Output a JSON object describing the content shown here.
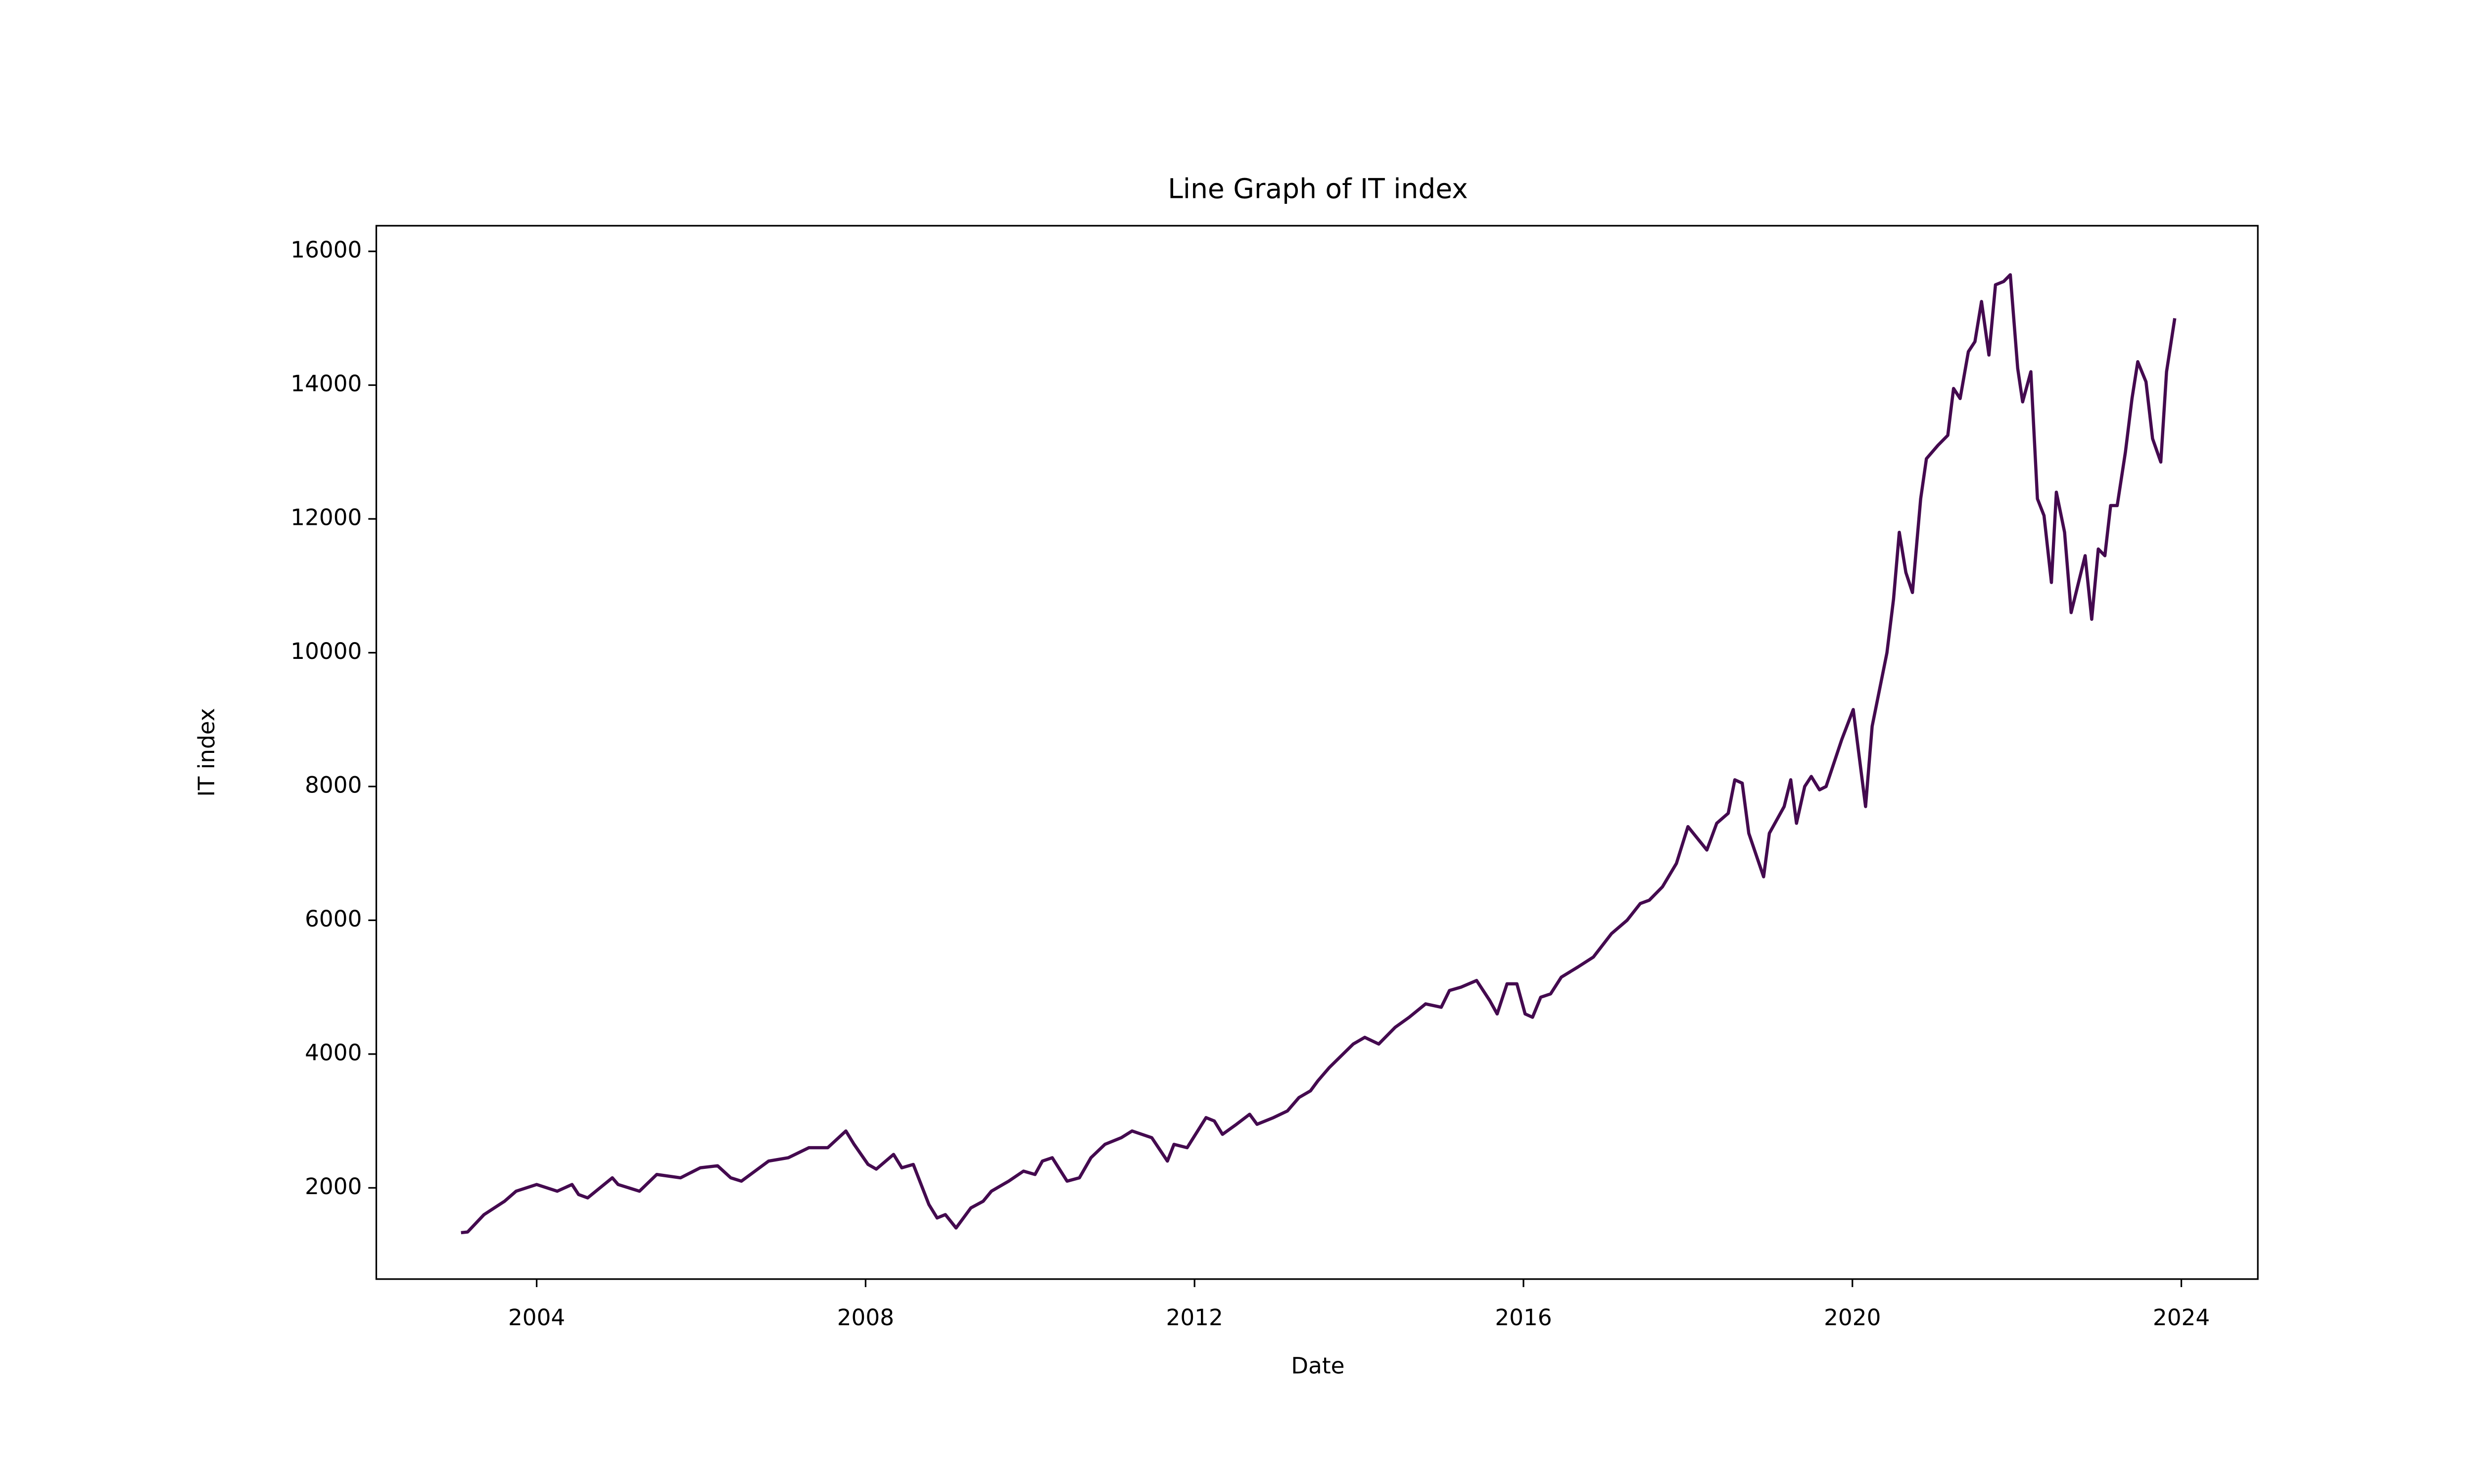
{
  "chart_data": {
    "type": "line",
    "title": "Line Graph of IT index",
    "x_label": "Date",
    "y_label": "IT index",
    "x": [
      2003.08,
      2003.16,
      2003.36,
      2003.61,
      2003.75,
      2004.0,
      2004.25,
      2004.43,
      2004.51,
      2004.62,
      2004.92,
      2004.99,
      2005.25,
      2005.46,
      2005.75,
      2005.99,
      2006.2,
      2006.36,
      2006.49,
      2006.82,
      2007.06,
      2007.31,
      2007.54,
      2007.76,
      2007.86,
      2008.03,
      2008.13,
      2008.34,
      2008.44,
      2008.58,
      2008.77,
      2008.87,
      2008.97,
      2009.1,
      2009.28,
      2009.43,
      2009.53,
      2009.74,
      2009.92,
      2010.06,
      2010.15,
      2010.27,
      2010.45,
      2010.6,
      2010.74,
      2010.91,
      2011.11,
      2011.24,
      2011.48,
      2011.67,
      2011.75,
      2011.91,
      2012.14,
      2012.24,
      2012.34,
      2012.51,
      2012.67,
      2012.76,
      2012.96,
      2013.13,
      2013.27,
      2013.41,
      2013.5,
      2013.64,
      2013.93,
      2014.07,
      2014.24,
      2014.44,
      2014.61,
      2014.81,
      2015.0,
      2015.1,
      2015.24,
      2015.43,
      2015.59,
      2015.68,
      2015.8,
      2015.92,
      2016.02,
      2016.11,
      2016.21,
      2016.33,
      2016.46,
      2016.66,
      2016.85,
      2017.07,
      2017.26,
      2017.42,
      2017.53,
      2017.69,
      2017.86,
      2018.0,
      2018.23,
      2018.35,
      2018.49,
      2018.57,
      2018.66,
      2018.74,
      2018.92,
      2018.99,
      2019.17,
      2019.25,
      2019.32,
      2019.42,
      2019.5,
      2019.6,
      2019.68,
      2019.87,
      2020.01,
      2020.16,
      2020.24,
      2020.42,
      2020.5,
      2020.57,
      2020.65,
      2020.73,
      2020.83,
      2020.9,
      2021.04,
      2021.16,
      2021.23,
      2021.31,
      2021.41,
      2021.49,
      2021.57,
      2021.66,
      2021.74,
      2021.84,
      2021.92,
      2022.01,
      2022.07,
      2022.17,
      2022.25,
      2022.33,
      2022.42,
      2022.48,
      2022.58,
      2022.66,
      2022.83,
      2022.91,
      2022.99,
      2023.07,
      2023.14,
      2023.22,
      2023.32,
      2023.4,
      2023.47,
      2023.57,
      2023.65,
      2023.75,
      2023.82,
      2023.92
    ],
    "series": [
      {
        "name": "IT index",
        "color": "#440a4f",
        "values": [
          1330,
          1340,
          1600,
          1800,
          1950,
          2050,
          1950,
          2050,
          1900,
          1850,
          2150,
          2050,
          1950,
          2200,
          2150,
          2300,
          2330,
          2150,
          2100,
          2400,
          2450,
          2600,
          2600,
          2850,
          2650,
          2350,
          2280,
          2500,
          2300,
          2350,
          1750,
          1550,
          1600,
          1400,
          1700,
          1800,
          1950,
          2100,
          2250,
          2200,
          2400,
          2450,
          2100,
          2150,
          2450,
          2650,
          2750,
          2850,
          2750,
          2400,
          2650,
          2600,
          3050,
          3000,
          2800,
          2950,
          3100,
          2950,
          3050,
          3150,
          3350,
          3450,
          3600,
          3800,
          4150,
          4250,
          4150,
          4400,
          4550,
          4750,
          4700,
          4950,
          5000,
          5100,
          4800,
          4600,
          5050,
          5050,
          4600,
          4550,
          4850,
          4900,
          5150,
          5300,
          5450,
          5800,
          6000,
          6250,
          6300,
          6500,
          6850,
          7400,
          7050,
          7450,
          7600,
          8100,
          8050,
          7300,
          6650,
          7300,
          7700,
          8100,
          7450,
          8000,
          8150,
          7950,
          8000,
          8700,
          9150,
          7700,
          8900,
          10000,
          10800,
          11800,
          11200,
          10900,
          12300,
          12900,
          13100,
          13250,
          13950,
          13800,
          14500,
          14650,
          15250,
          14450,
          15500,
          15550,
          15650,
          14250,
          13750,
          14200,
          12300,
          12050,
          11050,
          12400,
          11800,
          10600,
          11450,
          10500,
          11550,
          11450,
          12200,
          12200,
          13000,
          13800,
          14350,
          14050,
          13200,
          12850,
          14200,
          15000
        ]
      }
    ],
    "xlim": [
      2002.05,
      2024.93
    ],
    "xticks": [
      2004,
      2008,
      2012,
      2016,
      2020,
      2024
    ],
    "ylim": [
      636,
      16383
    ],
    "yticks": [
      2000,
      4000,
      6000,
      8000,
      10000,
      12000,
      14000,
      16000
    ]
  }
}
